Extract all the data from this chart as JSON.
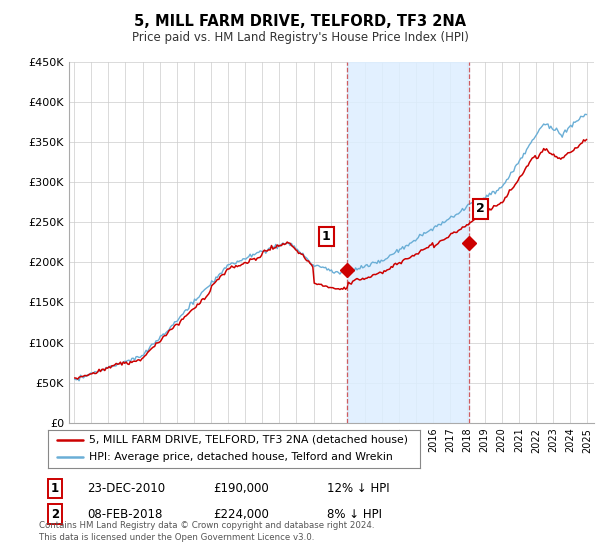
{
  "title": "5, MILL FARM DRIVE, TELFORD, TF3 2NA",
  "subtitle": "Price paid vs. HM Land Registry's House Price Index (HPI)",
  "ylim": [
    0,
    450000
  ],
  "ytick_values": [
    0,
    50000,
    100000,
    150000,
    200000,
    250000,
    300000,
    350000,
    400000,
    450000
  ],
  "hpi_color": "#6aaed6",
  "hpi_fill": "#ddeeff",
  "price_color": "#cc0000",
  "vline1_x": 2010.96,
  "vline2_x": 2018.09,
  "sale1_t": 2010.96,
  "sale1_price": 190000,
  "sale2_t": 2018.09,
  "sale2_price": 224000,
  "legend_line1": "5, MILL FARM DRIVE, TELFORD, TF3 2NA (detached house)",
  "legend_line2": "HPI: Average price, detached house, Telford and Wrekin",
  "table_row1_num": "1",
  "table_row1_date": "23-DEC-2010",
  "table_row1_price": "£190,000",
  "table_row1_hpi": "12% ↓ HPI",
  "table_row2_num": "2",
  "table_row2_date": "08-FEB-2018",
  "table_row2_price": "£224,000",
  "table_row2_hpi": "8% ↓ HPI",
  "footer": "Contains HM Land Registry data © Crown copyright and database right 2024.\nThis data is licensed under the Open Government Licence v3.0.",
  "background_color": "#ffffff",
  "grid_color": "#cccccc",
  "xlim_left": 1994.7,
  "xlim_right": 2025.4
}
